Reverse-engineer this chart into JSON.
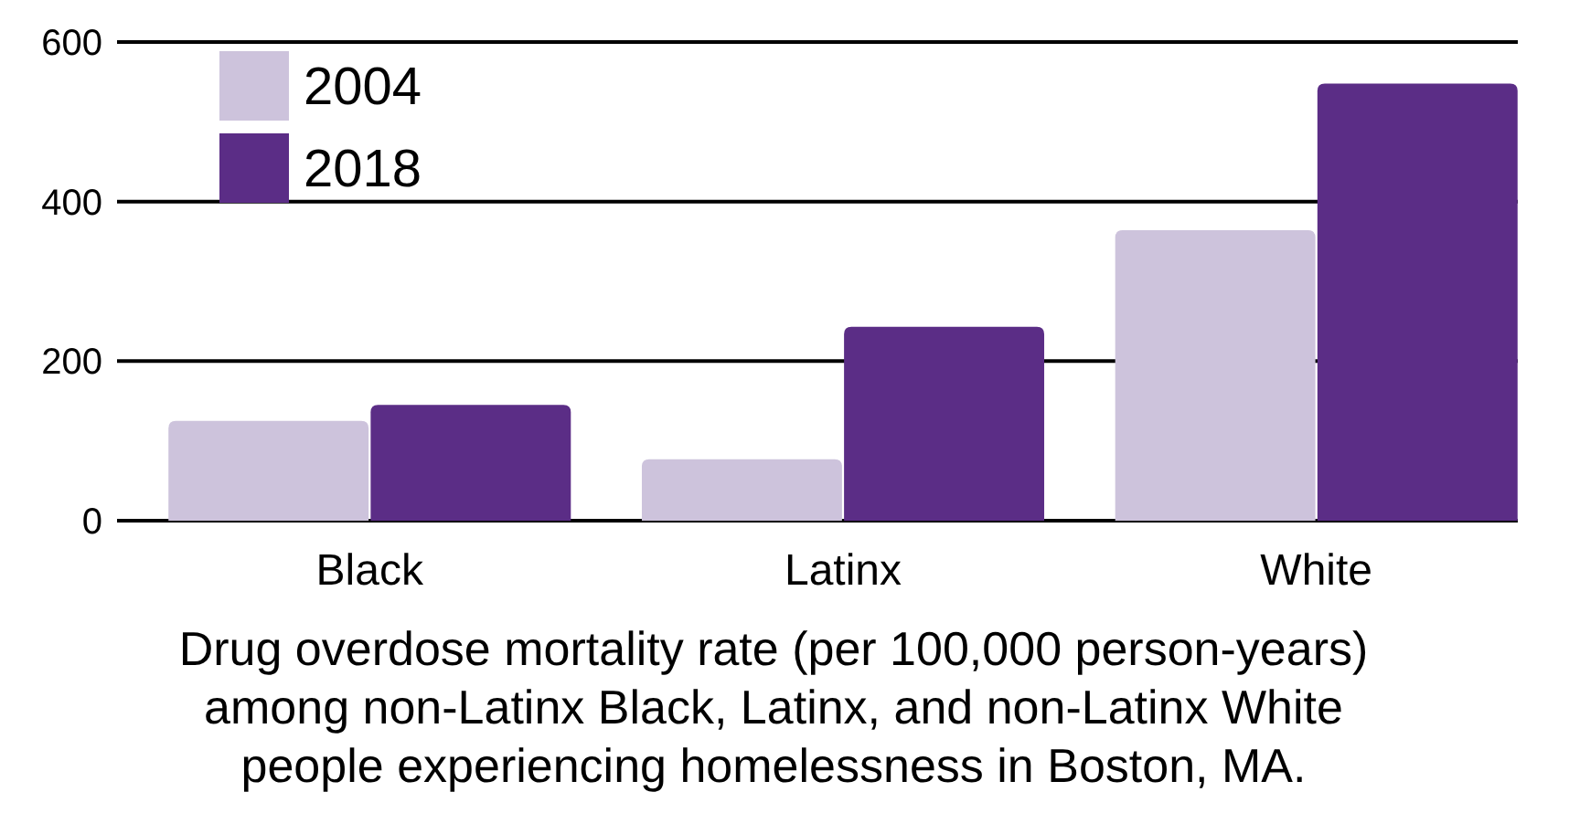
{
  "chart_data": {
    "type": "bar",
    "categories": [
      "Black",
      "Latinx",
      "White"
    ],
    "series": [
      {
        "name": "2004",
        "color": "#cdc3dc",
        "values": [
          125,
          77,
          364
        ]
      },
      {
        "name": "2018",
        "color": "#5b2d86",
        "values": [
          145,
          243,
          548
        ]
      }
    ],
    "ylim": [
      0,
      600
    ],
    "yticks": [
      0,
      200,
      400,
      600
    ],
    "grid": "y",
    "legend": "top left",
    "annotations": [
      "Drug overdose mortality rate (per 100,000 person-years) among non-Latinx Black, Latinx, and non-Latinx White people experiencing homelessness in Boston, MA."
    ]
  }
}
